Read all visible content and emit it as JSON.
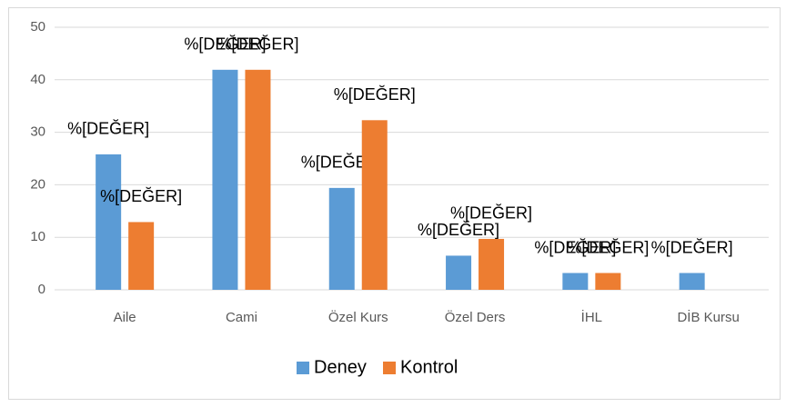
{
  "chart_data": {
    "type": "bar",
    "categories": [
      "Aile",
      "Cami",
      "Özel Kurs",
      "Özel Ders",
      "İHL",
      "DİB Kursu"
    ],
    "series": [
      {
        "name": "Deney",
        "color": "#5b9bd5",
        "values": [
          25.8,
          41.9,
          19.4,
          6.5,
          3.2,
          3.2
        ],
        "value_labels": [
          "%[DEĞER]",
          "%[DEĞER]",
          "%[DEĞER]",
          "%[DEĞER]",
          "%[DEĞER]",
          "%[DEĞER]"
        ]
      },
      {
        "name": "Kontrol",
        "color": "#ed7d31",
        "values": [
          12.9,
          41.9,
          32.3,
          9.7,
          3.2,
          null
        ],
        "value_labels": [
          "%[DEĞER]",
          "%[DEĞER]",
          "%[DEĞER]",
          "%[DEĞER]",
          "%[DEĞER]",
          null
        ]
      }
    ],
    "ylim": [
      0,
      50
    ],
    "yticks": [
      0,
      10,
      20,
      30,
      40,
      50
    ],
    "grid": true,
    "legend": "bottom"
  }
}
